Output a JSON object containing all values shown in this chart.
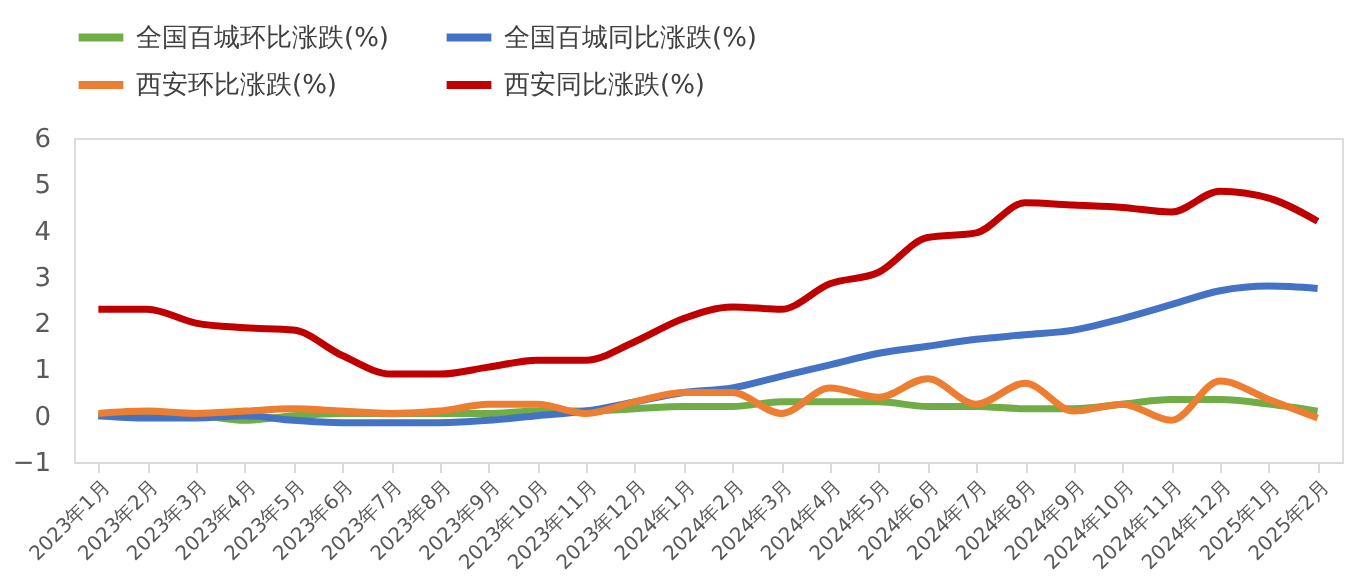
{
  "chart_data": {
    "type": "line",
    "categories": [
      "2023年1月",
      "2023年2月",
      "2023年3月",
      "2023年4月",
      "2023年5月",
      "2023年6月",
      "2023年7月",
      "2023年8月",
      "2023年9月",
      "2023年10月",
      "2023年11月",
      "2023年12月",
      "2024年1月",
      "2024年2月",
      "2024年3月",
      "2024年4月",
      "2024年5月",
      "2024年6月",
      "2024年7月",
      "2024年8月",
      "2024年9月",
      "2024年10月",
      "2024年11月",
      "2024年12月",
      "2025年1月",
      "2025年2月"
    ],
    "series": [
      {
        "name": "全国百城环比涨跌(%)",
        "color": "#70ad47",
        "values": [
          0,
          0,
          0,
          -0.1,
          0,
          0.05,
          0.05,
          0.05,
          0.05,
          0.1,
          0.1,
          0.15,
          0.2,
          0.2,
          0.3,
          0.3,
          0.3,
          0.2,
          0.2,
          0.15,
          0.15,
          0.25,
          0.35,
          0.35,
          0.25,
          0.1
        ]
      },
      {
        "name": "全国百城同比涨跌(%)",
        "color": "#4472c4",
        "values": [
          0,
          -0.05,
          -0.05,
          0,
          -0.1,
          -0.15,
          -0.15,
          -0.15,
          -0.1,
          0,
          0.1,
          0.3,
          0.5,
          0.6,
          0.85,
          1.1,
          1.35,
          1.5,
          1.65,
          1.75,
          1.85,
          2.1,
          2.4,
          2.7,
          2.8,
          2.75
        ]
      },
      {
        "name": "西安环比涨跌(%)",
        "color": "#ed7d31",
        "values": [
          0.05,
          0.1,
          0.05,
          0.1,
          0.15,
          0.1,
          0.05,
          0.1,
          0.25,
          0.25,
          0.05,
          0.3,
          0.5,
          0.5,
          0.05,
          0.6,
          0.4,
          0.8,
          0.25,
          0.7,
          0.1,
          0.25,
          -0.1,
          0.75,
          0.35,
          -0.05
        ]
      },
      {
        "name": "西安同比涨跌(%)",
        "color": "#c00000",
        "values": [
          2.3,
          2.3,
          2.0,
          1.9,
          1.85,
          1.3,
          0.9,
          0.9,
          1.05,
          1.2,
          1.2,
          1.6,
          2.1,
          2.35,
          2.3,
          2.85,
          3.1,
          3.85,
          3.95,
          4.6,
          4.55,
          4.5,
          4.4,
          4.85,
          4.7,
          4.2
        ]
      }
    ],
    "ylim": [
      -1,
      6
    ],
    "yticks": [
      -1,
      0,
      1,
      2,
      3,
      4,
      5,
      6
    ],
    "grid": false,
    "legend": "top",
    "marker": "none",
    "line_style": "solid"
  }
}
